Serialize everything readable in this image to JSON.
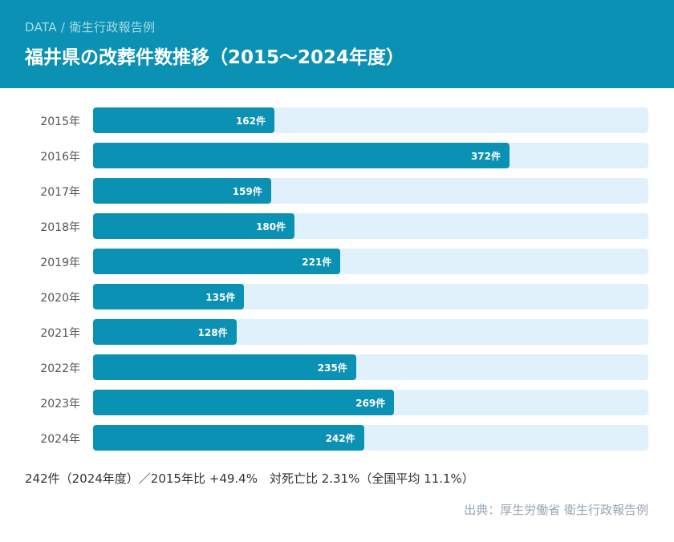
{
  "header": {
    "kicker": "DATA / 衛生行政報告例",
    "title": "福井県の改葬件数推移（2015〜2024年度）"
  },
  "chart_data": {
    "type": "bar",
    "orientation": "horizontal",
    "title": "福井県の改葬件数推移（2015〜2024年度）",
    "categories": [
      "2015年",
      "2016年",
      "2017年",
      "2018年",
      "2019年",
      "2020年",
      "2021年",
      "2022年",
      "2023年",
      "2024年"
    ],
    "values": [
      162,
      372,
      159,
      180,
      221,
      135,
      128,
      235,
      269,
      242
    ],
    "value_labels": [
      "162件",
      "372件",
      "159件",
      "180件",
      "221件",
      "135件",
      "128件",
      "235件",
      "269件",
      "242件"
    ],
    "unit": "件",
    "xlim": [
      0,
      496
    ],
    "bar_color": "#0a91b4",
    "track_color": "#e0f1fb"
  },
  "summary": "242件（2024年度）／2015年比 +49.4%　対死亡比 2.31%（全国平均 11.1%）",
  "source": "出典：厚生労働省 衛生行政報告例"
}
